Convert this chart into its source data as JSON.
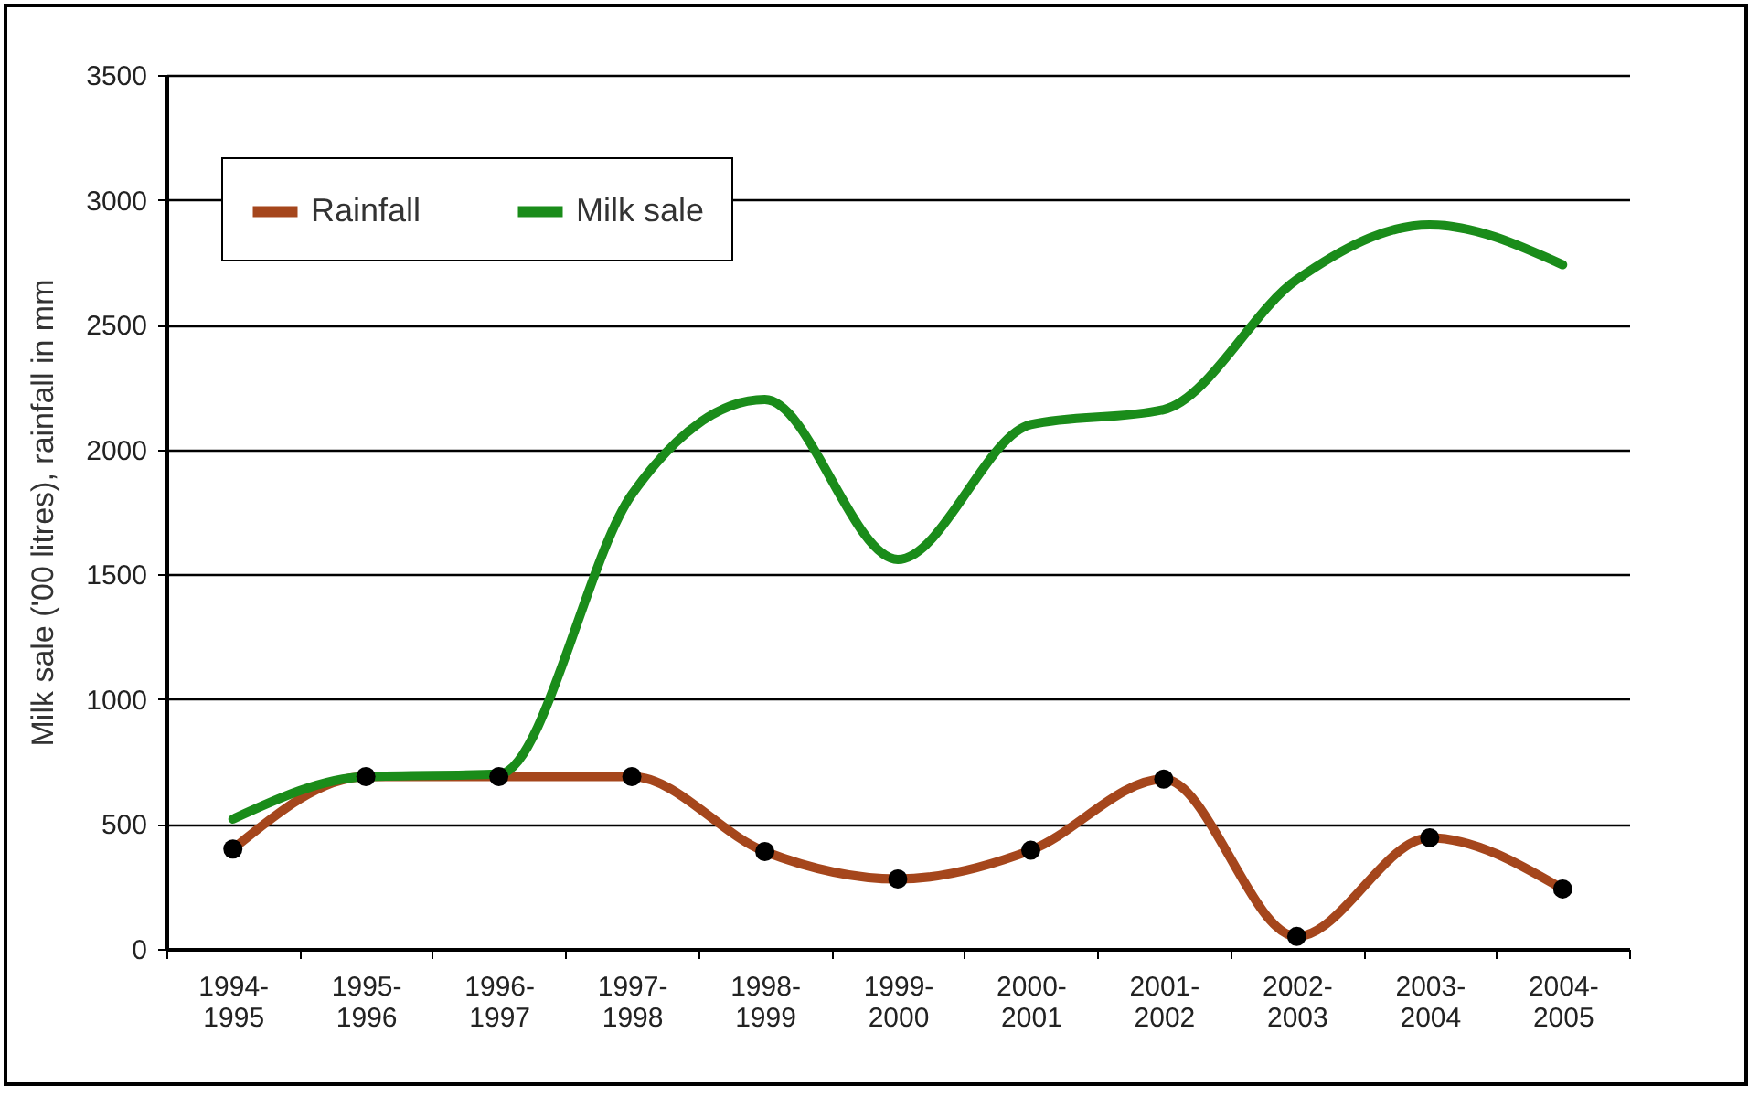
{
  "chart_data": {
    "type": "line",
    "ylabel": "Milk sale ('00 litres), rainfall in mm",
    "categories": [
      "1994-1995",
      "1995-1996",
      "1996-1997",
      "1997-1998",
      "1998-1999",
      "1999-2000",
      "2000-2001",
      "2001-2002",
      "2002-2003",
      "2003-2004",
      "2004-2005"
    ],
    "series": [
      {
        "name": "Rainfall",
        "color": "#a5461c",
        "marker": "circle",
        "values": [
          400,
          690,
          690,
          690,
          390,
          280,
          395,
          680,
          50,
          445,
          240
        ]
      },
      {
        "name": "Milk sale",
        "color": "#1a8c1a",
        "marker": "none",
        "values": [
          520,
          690,
          700,
          1820,
          2200,
          1560,
          2100,
          2160,
          2680,
          2900,
          2740
        ]
      }
    ],
    "ylim": [
      0,
      3500
    ],
    "yticks": [
      0,
      500,
      1000,
      1500,
      2000,
      2500,
      3000,
      3500
    ],
    "grid": "y",
    "legend": "top left"
  }
}
